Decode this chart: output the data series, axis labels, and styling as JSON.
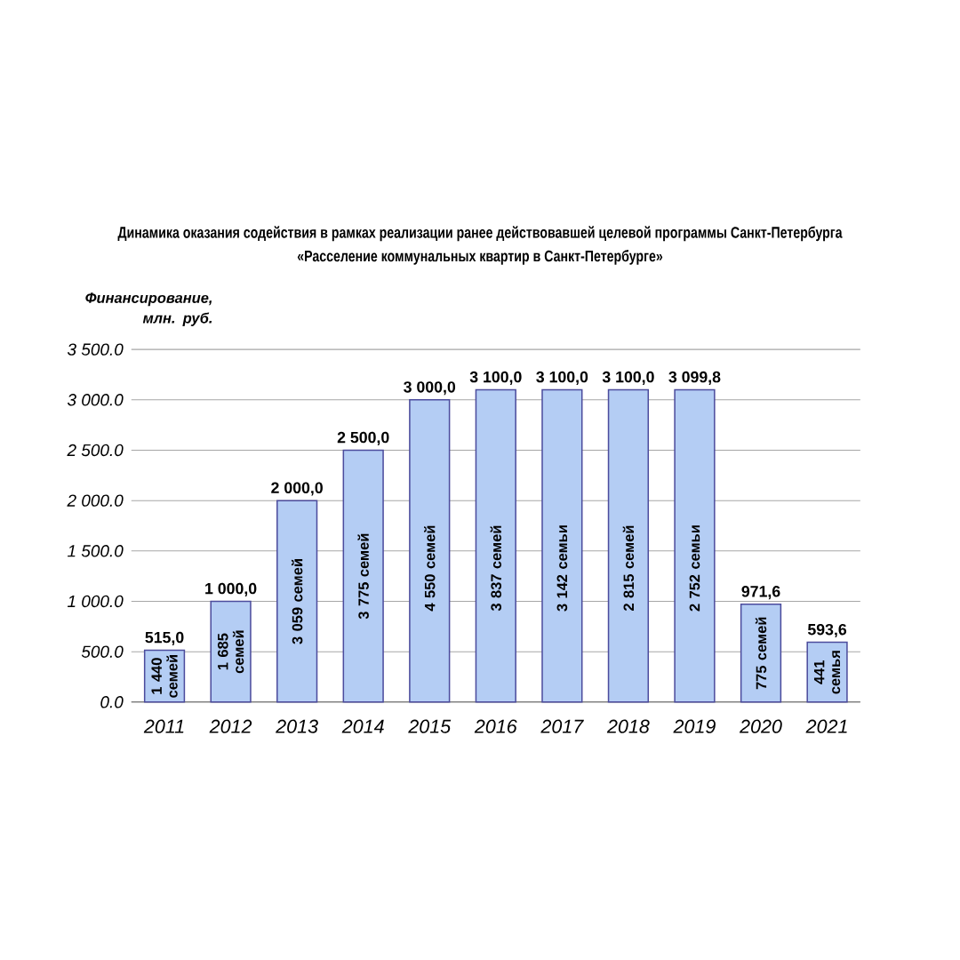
{
  "chart_data": {
    "type": "bar",
    "title": "Динамика оказания содействия в рамках реализации ранее действовавшей целевой программы Санкт-Петербурга",
    "subtitle": "«Расселение коммунальных квартир в Санкт-Петербурге»",
    "ylabel": "Финансирование, млн. руб.",
    "categories": [
      "2011",
      "2012",
      "2013",
      "2014",
      "2015",
      "2016",
      "2017",
      "2018",
      "2019",
      "2020",
      "2021"
    ],
    "values": [
      515,
      1000,
      2000,
      2500,
      3000,
      3100,
      3100,
      3100,
      3099.8,
      971.6,
      593.6
    ],
    "value_labels": [
      "515,0",
      "1 000,0",
      "2 000,0",
      "2 500,0",
      "3 000,0",
      "3 100,0",
      "3 100,0",
      "3 100,0",
      "3 099,8",
      "971,6",
      "593,6"
    ],
    "color": "#b4cdf4",
    "ylim": [
      0,
      3500
    ],
    "yticks": [
      {
        "value": 0,
        "label": "0.0"
      },
      {
        "value": 500,
        "label": "500.0"
      },
      {
        "value": 1000,
        "label": "1 000.0"
      },
      {
        "value": 1500,
        "label": "1 500.0"
      },
      {
        "value": 2000,
        "label": "2 000.0"
      },
      {
        "value": 2500,
        "label": "2 500.0"
      },
      {
        "value": 3000,
        "label": "3 000.0"
      },
      {
        "value": 3500,
        "label": "3 500.0"
      }
    ],
    "grid": "y",
    "annotations": [
      "1 440 семей",
      "1 685 семей",
      "3 059 семей",
      "3 775 семей",
      "4 550 семей",
      "3 837 семей",
      "3 142 семьи",
      "2 815 семей",
      "2 752 семьи",
      "775 семей",
      "441 семья"
    ]
  }
}
